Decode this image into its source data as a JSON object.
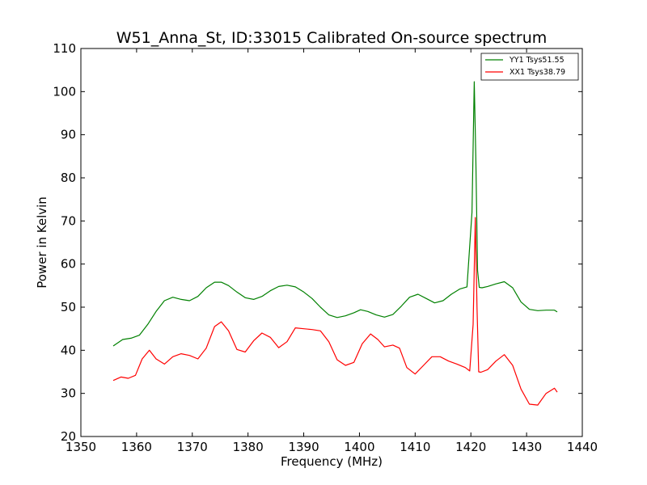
{
  "chart_data": {
    "type": "line",
    "title": "W51_Anna_St, ID:33015 Calibrated On-source spectrum",
    "xlabel": "Frequency (MHz)",
    "ylabel": "Power in Kelvin",
    "xlim": [
      1350,
      1440
    ],
    "ylim": [
      20,
      110
    ],
    "xticks": [
      1350,
      1360,
      1370,
      1380,
      1390,
      1400,
      1410,
      1420,
      1430,
      1440
    ],
    "yticks": [
      20,
      30,
      40,
      50,
      60,
      70,
      80,
      90,
      100,
      110
    ],
    "grid": false,
    "legend_position": "top-right",
    "series": [
      {
        "name": "YY1 Tsys51.55",
        "color": "#008000",
        "x": [
          1355.8,
          1357.5,
          1359,
          1360.5,
          1362,
          1363.5,
          1365,
          1366.5,
          1368,
          1369.5,
          1371,
          1372.5,
          1374,
          1375.2,
          1376.5,
          1378,
          1379.5,
          1381,
          1382.5,
          1384,
          1385.5,
          1387,
          1388.5,
          1390,
          1391.5,
          1393,
          1394.5,
          1396,
          1397.5,
          1399,
          1400.2,
          1401.5,
          1403,
          1404.5,
          1406,
          1407.5,
          1409,
          1410.5,
          1412,
          1413.5,
          1415,
          1416.5,
          1418,
          1419.3,
          1420.2,
          1420.6,
          1420.9,
          1421.2,
          1421.5,
          1422,
          1423,
          1424.5,
          1426,
          1427.5,
          1429,
          1430.5,
          1432,
          1433.5,
          1435,
          1435.5
        ],
        "y": [
          41,
          42.5,
          42.8,
          43.5,
          46,
          49,
          51.5,
          52.3,
          51.8,
          51.5,
          52.5,
          54.5,
          55.8,
          55.8,
          55,
          53.5,
          52.2,
          51.8,
          52.5,
          53.8,
          54.8,
          55.1,
          54.7,
          53.5,
          52,
          50,
          48.2,
          47.6,
          48,
          48.7,
          49.4,
          49,
          48.2,
          47.7,
          48.3,
          50.2,
          52.3,
          53,
          52,
          51,
          51.5,
          53,
          54.2,
          54.7,
          72,
          102.3,
          84,
          58.5,
          54.6,
          54.5,
          54.8,
          55.4,
          55.9,
          54.5,
          51.2,
          49.5,
          49.2,
          49.3,
          49.3,
          48.9
        ]
      },
      {
        "name": "XX1 Tsys38.79",
        "color": "#ff0000",
        "x": [
          1355.8,
          1357.2,
          1358.5,
          1359.8,
          1361,
          1362.3,
          1363.5,
          1365,
          1366.5,
          1368,
          1369.5,
          1371,
          1372.5,
          1374,
          1375.2,
          1376.5,
          1378,
          1379.5,
          1381,
          1382.5,
          1384,
          1385.5,
          1387,
          1388.5,
          1390,
          1391.5,
          1393,
          1394.5,
          1396,
          1397.5,
          1399,
          1400.5,
          1402,
          1403.3,
          1404.5,
          1406,
          1407.2,
          1408.5,
          1410,
          1411.5,
          1413,
          1414.5,
          1416,
          1417.5,
          1419,
          1419.8,
          1420.4,
          1420.8,
          1421.1,
          1421.4,
          1421.8,
          1423,
          1424.5,
          1426,
          1427.5,
          1429,
          1430.5,
          1432,
          1433.5,
          1435,
          1435.5
        ],
        "y": [
          33,
          33.8,
          33.5,
          34.2,
          38,
          40,
          38,
          36.8,
          38.5,
          39.2,
          38.8,
          38,
          40.5,
          45.5,
          46.6,
          44.5,
          40.2,
          39.6,
          42.2,
          44,
          43,
          40.6,
          42,
          45.2,
          45,
          44.8,
          44.5,
          42,
          37.8,
          36.5,
          37.2,
          41.5,
          43.8,
          42.5,
          40.8,
          41.2,
          40.5,
          36,
          34.5,
          36.5,
          38.5,
          38.5,
          37.5,
          36.8,
          36,
          35.2,
          46,
          70.8,
          50,
          35,
          34.9,
          35.5,
          37.5,
          39,
          36.5,
          31,
          27.5,
          27.3,
          30,
          31.2,
          30.3
        ]
      }
    ]
  }
}
